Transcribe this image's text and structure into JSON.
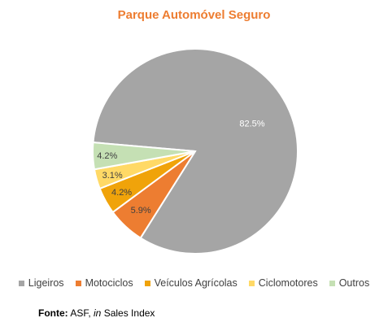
{
  "source": {
    "label": "Fonte:",
    "text_prefix": "ASF,",
    "text_italic": "in",
    "text_suffix": "Sales Index"
  },
  "chart_data": {
    "type": "pie",
    "title": "Parque Automóvel Seguro",
    "slices": [
      {
        "name": "Ligeiros",
        "value": 82.5,
        "label": "82.5%",
        "color": "#A5A5A5"
      },
      {
        "name": "Motociclos",
        "value": 5.9,
        "label": "5.9%",
        "color": "#ED7D31"
      },
      {
        "name": "Veículos Agrícolas",
        "value": 4.2,
        "label": "4.2%",
        "color": "#F0A30A"
      },
      {
        "name": "Ciclomotores",
        "value": 3.1,
        "label": "3.1%",
        "color": "#FFD966"
      },
      {
        "name": "Outros",
        "value": 4.2,
        "label": "4.2%",
        "color": "#C5E0B4"
      }
    ],
    "legend_position": "bottom"
  }
}
